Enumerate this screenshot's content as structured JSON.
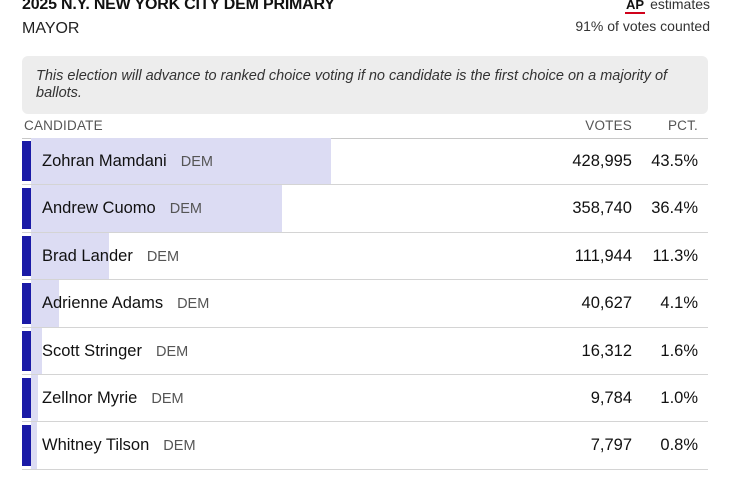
{
  "header": {
    "title": "2025 N.Y. NEW YORK CITY DEM PRIMARY",
    "subtitle": "MAYOR",
    "ap_logo": "AP",
    "estimates_label": "estimates",
    "count_label": "91% of votes counted"
  },
  "note": "This election will advance to ranked choice voting if no candidate is the first choice on a majority of ballots.",
  "columns": {
    "candidate": "CANDIDATE",
    "votes": "VOTES",
    "pct": "PCT."
  },
  "colors": {
    "accent": "#1a1aa6",
    "bar": "#dcdcf3",
    "ap_red": "#d0021b"
  },
  "candidates": [
    {
      "name": "Zohran Mamdani",
      "party": "DEM",
      "votes": "428,995",
      "pct": "43.5%",
      "share": 43.5
    },
    {
      "name": "Andrew Cuomo",
      "party": "DEM",
      "votes": "358,740",
      "pct": "36.4%",
      "share": 36.4
    },
    {
      "name": "Brad Lander",
      "party": "DEM",
      "votes": "111,944",
      "pct": "11.3%",
      "share": 11.3
    },
    {
      "name": "Adrienne Adams",
      "party": "DEM",
      "votes": "40,627",
      "pct": "4.1%",
      "share": 4.1
    },
    {
      "name": "Scott Stringer",
      "party": "DEM",
      "votes": "16,312",
      "pct": "1.6%",
      "share": 1.6
    },
    {
      "name": "Zellnor Myrie",
      "party": "DEM",
      "votes": "9,784",
      "pct": "1.0%",
      "share": 1.0
    },
    {
      "name": "Whitney Tilson",
      "party": "DEM",
      "votes": "7,797",
      "pct": "0.8%",
      "share": 0.8
    }
  ]
}
